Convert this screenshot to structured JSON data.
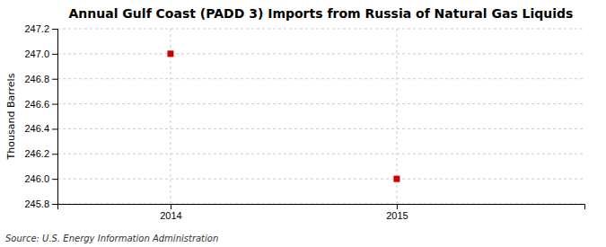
{
  "chart_data": {
    "type": "scatter",
    "title": "Annual Gulf Coast (PADD 3) Imports from Russia of Natural Gas Liquids",
    "ylabel": "Thousand Barrels",
    "annotations": [
      "Source: U.S. Energy Information Administration"
    ],
    "x": [
      2014,
      2015
    ],
    "values": [
      247.0,
      246.0
    ],
    "color": "#cc0000",
    "marker": "square",
    "xlim": [
      2013.5,
      2015.83
    ],
    "ylim": [
      245.8,
      247.2
    ],
    "xticks": [
      2014,
      2015
    ],
    "yticks": [
      245.8,
      {
        "value": 246.0,
        "label": "246.0"
      },
      246.2,
      246.4,
      246.6,
      246.8,
      {
        "value": 247.0,
        "label": "247.0"
      },
      247.2
    ],
    "grid": true
  }
}
